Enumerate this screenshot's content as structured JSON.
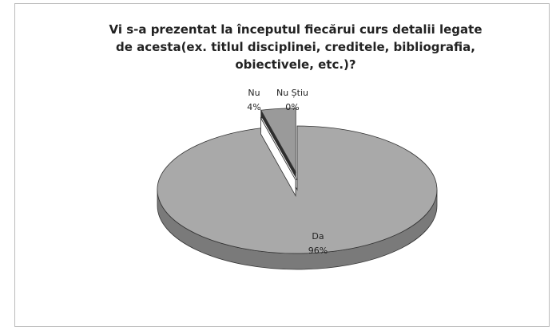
{
  "chart_data": {
    "type": "pie",
    "title": "Vi s-a prezentat la începutul fiecărui curs detalii legate de acesta(ex. titlul disciplinei, creditele, bibliografia, obiectivele, etc.)?",
    "categories": [
      "Da",
      "Nu",
      "Nu Știu"
    ],
    "values": [
      96,
      4,
      0
    ],
    "value_labels": [
      "96%",
      "4%",
      "0%"
    ],
    "colors": [
      "#a9a9a9",
      "#9a9a9a",
      "#ffffff"
    ]
  }
}
